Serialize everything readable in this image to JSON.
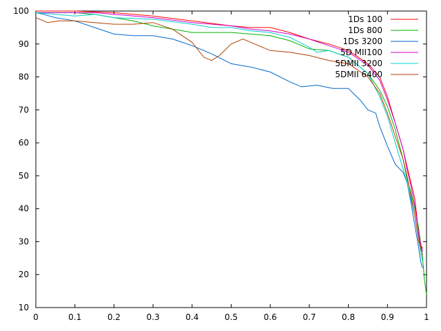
{
  "chart_data": {
    "type": "line",
    "title": "",
    "xlabel": "",
    "ylabel": "",
    "xlim": [
      0,
      1
    ],
    "ylim": [
      10,
      100
    ],
    "x_ticks": [
      "0",
      "0.1",
      "0.2",
      "0.3",
      "0.4",
      "0.5",
      "0.6",
      "0.7",
      "0.8",
      "0.9",
      "1"
    ],
    "y_ticks": [
      "10",
      "20",
      "30",
      "40",
      "50",
      "60",
      "70",
      "80",
      "90",
      "100"
    ],
    "grid": false,
    "legend_position": "top-right",
    "series": [
      {
        "name": "1Ds 100",
        "color": "#ff0000",
        "points": [
          [
            0,
            100
          ],
          [
            0.05,
            100
          ],
          [
            0.1,
            100
          ],
          [
            0.2,
            99.5
          ],
          [
            0.3,
            98.5
          ],
          [
            0.4,
            97
          ],
          [
            0.5,
            95.5
          ],
          [
            0.55,
            95
          ],
          [
            0.6,
            95
          ],
          [
            0.65,
            93.5
          ],
          [
            0.7,
            91.5
          ],
          [
            0.75,
            90
          ],
          [
            0.8,
            88
          ],
          [
            0.85,
            84
          ],
          [
            0.88,
            80
          ],
          [
            0.9,
            74
          ],
          [
            0.92,
            66
          ],
          [
            0.94,
            58
          ],
          [
            0.95,
            53
          ],
          [
            0.96,
            48
          ],
          [
            0.97,
            43
          ],
          [
            0.975,
            38
          ],
          [
            0.98,
            32
          ],
          [
            0.985,
            28
          ],
          [
            0.99,
            26
          ]
        ]
      },
      {
        "name": "1Ds 800",
        "color": "#00b000",
        "points": [
          [
            0,
            99.5
          ],
          [
            0.05,
            99.5
          ],
          [
            0.1,
            99.5
          ],
          [
            0.15,
            99
          ],
          [
            0.2,
            98
          ],
          [
            0.25,
            97
          ],
          [
            0.3,
            95.5
          ],
          [
            0.35,
            94.5
          ],
          [
            0.4,
            93.5
          ],
          [
            0.45,
            93.5
          ],
          [
            0.5,
            93.5
          ],
          [
            0.55,
            93
          ],
          [
            0.6,
            92.5
          ],
          [
            0.65,
            91
          ],
          [
            0.7,
            88.5
          ],
          [
            0.75,
            88
          ],
          [
            0.8,
            86
          ],
          [
            0.85,
            81
          ],
          [
            0.88,
            76
          ],
          [
            0.9,
            71
          ],
          [
            0.92,
            64
          ],
          [
            0.94,
            55
          ],
          [
            0.95,
            49
          ],
          [
            0.96,
            45
          ],
          [
            0.97,
            40
          ],
          [
            0.98,
            34
          ],
          [
            0.99,
            25
          ],
          [
            0.995,
            18
          ],
          [
            1,
            14
          ]
        ]
      },
      {
        "name": "1Ds 3200",
        "color": "#0066cc",
        "points": [
          [
            0,
            99.5
          ],
          [
            0.02,
            99
          ],
          [
            0.05,
            98
          ],
          [
            0.1,
            97
          ],
          [
            0.15,
            95
          ],
          [
            0.2,
            93
          ],
          [
            0.25,
            92.5
          ],
          [
            0.3,
            92.5
          ],
          [
            0.35,
            91.5
          ],
          [
            0.4,
            89.5
          ],
          [
            0.45,
            87
          ],
          [
            0.5,
            84
          ],
          [
            0.55,
            83
          ],
          [
            0.6,
            81.5
          ],
          [
            0.65,
            78.5
          ],
          [
            0.68,
            77
          ],
          [
            0.72,
            77.5
          ],
          [
            0.76,
            76.5
          ],
          [
            0.8,
            76.5
          ],
          [
            0.83,
            73
          ],
          [
            0.85,
            70
          ],
          [
            0.87,
            69
          ],
          [
            0.88,
            65
          ],
          [
            0.9,
            59
          ],
          [
            0.92,
            53.5
          ],
          [
            0.94,
            51
          ],
          [
            0.95,
            48
          ],
          [
            0.96,
            42
          ],
          [
            0.97,
            35
          ],
          [
            0.98,
            28
          ],
          [
            0.985,
            24
          ],
          [
            0.99,
            22
          ]
        ]
      },
      {
        "name": "5D MII100",
        "color": "#cc00cc",
        "points": [
          [
            0,
            99.5
          ],
          [
            0.05,
            99.5
          ],
          [
            0.1,
            99.5
          ],
          [
            0.15,
            99.5
          ],
          [
            0.2,
            99
          ],
          [
            0.3,
            98
          ],
          [
            0.4,
            96.5
          ],
          [
            0.5,
            95.5
          ],
          [
            0.55,
            94.5
          ],
          [
            0.6,
            94
          ],
          [
            0.65,
            93
          ],
          [
            0.7,
            91.5
          ],
          [
            0.75,
            89.5
          ],
          [
            0.8,
            87.5
          ],
          [
            0.85,
            83.5
          ],
          [
            0.88,
            79
          ],
          [
            0.9,
            73
          ],
          [
            0.92,
            66
          ],
          [
            0.94,
            58
          ],
          [
            0.95,
            52
          ],
          [
            0.96,
            47
          ],
          [
            0.97,
            41
          ],
          [
            0.98,
            32
          ],
          [
            0.99,
            27
          ]
        ]
      },
      {
        "name": "5DMII 3200",
        "color": "#00cccc",
        "points": [
          [
            0,
            99.5
          ],
          [
            0.05,
            99
          ],
          [
            0.1,
            98.5
          ],
          [
            0.15,
            99
          ],
          [
            0.2,
            98
          ],
          [
            0.3,
            97.5
          ],
          [
            0.4,
            96
          ],
          [
            0.45,
            95
          ],
          [
            0.5,
            95
          ],
          [
            0.55,
            94
          ],
          [
            0.6,
            93.5
          ],
          [
            0.65,
            92
          ],
          [
            0.7,
            89
          ],
          [
            0.72,
            87.5
          ],
          [
            0.75,
            88
          ],
          [
            0.8,
            86
          ],
          [
            0.83,
            83
          ],
          [
            0.85,
            81
          ],
          [
            0.88,
            74
          ],
          [
            0.9,
            68
          ],
          [
            0.92,
            60
          ],
          [
            0.93,
            56
          ],
          [
            0.94,
            52
          ],
          [
            0.95,
            48
          ],
          [
            0.96,
            43
          ],
          [
            0.97,
            38
          ],
          [
            0.98,
            30
          ],
          [
            0.99,
            24
          ]
        ]
      },
      {
        "name": "5DMII 6400",
        "color": "#b04000",
        "points": [
          [
            0,
            98
          ],
          [
            0.03,
            96.5
          ],
          [
            0.06,
            97
          ],
          [
            0.1,
            97
          ],
          [
            0.15,
            96.5
          ],
          [
            0.2,
            96
          ],
          [
            0.25,
            96
          ],
          [
            0.3,
            96.5
          ],
          [
            0.35,
            94.5
          ],
          [
            0.4,
            90.5
          ],
          [
            0.43,
            86
          ],
          [
            0.45,
            85
          ],
          [
            0.47,
            86.5
          ],
          [
            0.5,
            90
          ],
          [
            0.53,
            91.5
          ],
          [
            0.56,
            90
          ],
          [
            0.6,
            88
          ],
          [
            0.65,
            87.5
          ],
          [
            0.7,
            86.5
          ],
          [
            0.75,
            85
          ],
          [
            0.8,
            84
          ],
          [
            0.85,
            80
          ],
          [
            0.88,
            75
          ],
          [
            0.9,
            69
          ],
          [
            0.92,
            62
          ],
          [
            0.94,
            55
          ],
          [
            0.95,
            50
          ],
          [
            0.96,
            44
          ],
          [
            0.97,
            38
          ],
          [
            0.98,
            30
          ],
          [
            0.99,
            28
          ]
        ]
      }
    ]
  }
}
